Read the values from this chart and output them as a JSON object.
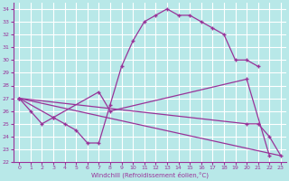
{
  "xlabel": "Windchill (Refroidissement éolien,°C)",
  "xlim": [
    -0.5,
    23.5
  ],
  "ylim": [
    22,
    34.5
  ],
  "yticks": [
    22,
    23,
    24,
    25,
    26,
    27,
    28,
    29,
    30,
    31,
    32,
    33,
    34
  ],
  "xticks": [
    0,
    1,
    2,
    3,
    4,
    5,
    6,
    7,
    8,
    9,
    10,
    11,
    12,
    13,
    14,
    15,
    16,
    17,
    18,
    19,
    20,
    21,
    22,
    23
  ],
  "bg_color": "#b8e8e8",
  "grid_color": "#ffffff",
  "line_color": "#993399",
  "curve1_x": [
    0,
    1,
    2,
    3,
    4,
    5,
    6,
    7,
    8,
    9,
    10,
    11,
    12,
    13,
    14,
    15,
    16,
    17,
    18,
    19,
    20,
    21
  ],
  "curve1_y": [
    27,
    26,
    25,
    25.5,
    25,
    24.5,
    23.5,
    23.5,
    26.5,
    29.5,
    31.5,
    33.0,
    33.5,
    34.0,
    33.5,
    33.5,
    33.0,
    32.5,
    32.0,
    30.0,
    30.0,
    29.5
  ],
  "curve2_x": [
    0,
    3,
    7,
    8,
    20,
    22
  ],
  "curve2_y": [
    27,
    25.5,
    27.5,
    26.0,
    28.5,
    22.5
  ],
  "curve3_x": [
    0,
    20,
    21,
    22,
    23
  ],
  "curve3_y": [
    27,
    25.0,
    25.0,
    24.0,
    22.5
  ],
  "curve4_x": [
    0,
    23
  ],
  "curve4_y": [
    27,
    22.5
  ]
}
